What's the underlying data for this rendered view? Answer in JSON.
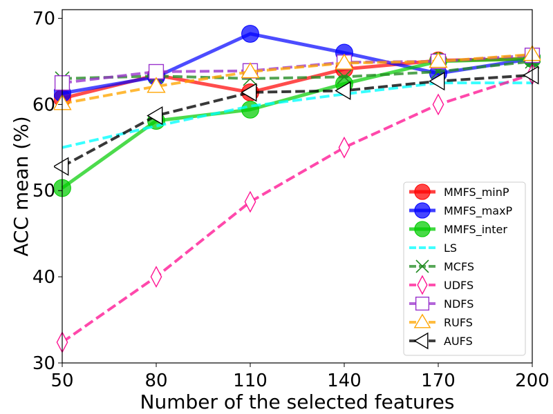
{
  "chart_data": {
    "type": "line",
    "title": "",
    "xlabel": "Number of the selected features",
    "ylabel": "ACC mean (%)",
    "x": [
      50,
      80,
      110,
      140,
      170,
      200
    ],
    "xlim": [
      50,
      200
    ],
    "ylim": [
      30,
      71
    ],
    "xticks": [
      "50",
      "80",
      "110",
      "140",
      "170",
      "200"
    ],
    "yticks": [
      "30",
      "40",
      "50",
      "60",
      "70"
    ],
    "ytick_values": [
      30,
      40,
      50,
      60,
      70
    ],
    "grid": false,
    "legend_position": "lower-right",
    "series": [
      {
        "name": "MMFS_minP",
        "values": [
          60.7,
          63.4,
          61.4,
          64.1,
          65.1,
          65.3
        ],
        "color": "#ff0000",
        "linestyle": "solid",
        "marker": "circle-filled"
      },
      {
        "name": "MMFS_maxP",
        "values": [
          61.3,
          63.2,
          68.2,
          66.0,
          63.6,
          65.3
        ],
        "color": "#0000ff",
        "linestyle": "solid",
        "marker": "circle-filled"
      },
      {
        "name": "MMFS_inter",
        "values": [
          50.3,
          58.1,
          59.4,
          62.4,
          65.0,
          65.3
        ],
        "color": "#00cc00",
        "linestyle": "solid",
        "marker": "circle-filled"
      },
      {
        "name": "LS",
        "values": [
          55.0,
          57.5,
          59.8,
          61.2,
          62.5,
          62.5
        ],
        "color": "#00ffff",
        "linestyle": "dashed",
        "marker": "none"
      },
      {
        "name": "MCFS",
        "values": [
          63.0,
          63.3,
          63.0,
          63.2,
          63.8,
          65.0
        ],
        "color": "#228b22",
        "linestyle": "dashed",
        "marker": "x"
      },
      {
        "name": "UDFS",
        "values": [
          32.4,
          40.0,
          48.7,
          55.0,
          60.0,
          63.5
        ],
        "color": "#ff1493",
        "linestyle": "dashed",
        "marker": "thin-diamond"
      },
      {
        "name": "NDFS",
        "values": [
          62.5,
          63.8,
          63.9,
          64.9,
          65.0,
          65.7
        ],
        "color": "#9932cc",
        "linestyle": "dashed",
        "marker": "square"
      },
      {
        "name": "RUFS",
        "values": [
          60.1,
          62.1,
          63.8,
          64.8,
          65.0,
          65.8
        ],
        "color": "#ffa500",
        "linestyle": "dashed",
        "marker": "triangle-up"
      },
      {
        "name": "AUFS",
        "values": [
          52.8,
          58.7,
          61.4,
          61.6,
          62.7,
          63.4
        ],
        "color": "#000000",
        "linestyle": "dashed",
        "marker": "triangle-left"
      }
    ]
  }
}
